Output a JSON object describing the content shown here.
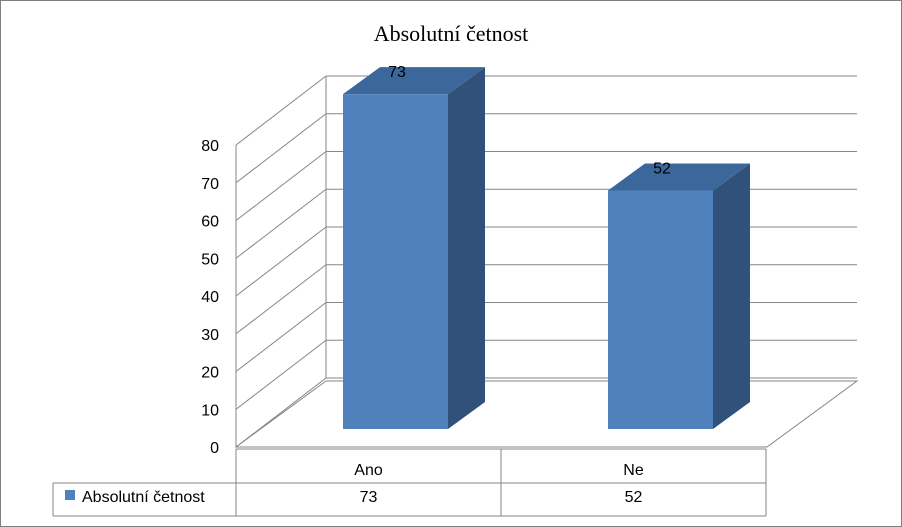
{
  "chart_data": {
    "type": "bar",
    "title": "Absolutní četnost",
    "categories": [
      "Ano",
      "Ne"
    ],
    "series": [
      {
        "name": "Absolutní četnost",
        "values": [
          73,
          52
        ]
      }
    ],
    "yticks": [
      "0",
      "10",
      "20",
      "30",
      "40",
      "50",
      "60",
      "70",
      "80"
    ],
    "ylim": [
      0,
      80
    ],
    "grid": true,
    "three_d": true,
    "legend": "data-table",
    "colors": {
      "bar_front": "#4f81bd",
      "bar_side": "#30527a",
      "bar_top": "#3c679b",
      "grid": "#868686"
    }
  }
}
